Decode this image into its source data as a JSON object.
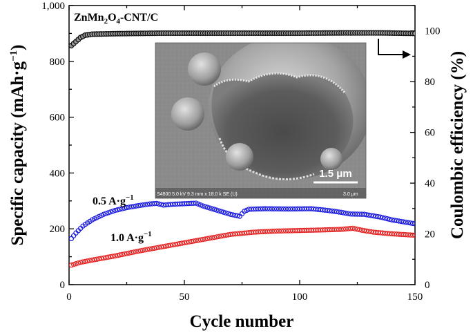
{
  "chart_data": {
    "type": "scatter",
    "title": "ZnMn2O4-CNT/C",
    "title_main": "ZnMn",
    "title_sub1": "2",
    "title_mid": "O",
    "title_sub2": "4",
    "title_end": "-CNT/C",
    "xlabel": "Cycle number",
    "ylabel_left": "Specific capacity (mAh·g",
    "ylabel_left_sup": "−1",
    "ylabel_left_end": ")",
    "ylabel_right": "Coulombic efficiency (%)",
    "xlim": [
      0,
      150
    ],
    "ylim_left": [
      0,
      1000
    ],
    "ylim_right": [
      0,
      110
    ],
    "x_ticks": [
      0,
      50,
      100,
      150
    ],
    "x_tick_labels": [
      "0",
      "50",
      "100",
      "150"
    ],
    "y_left_ticks": [
      0,
      200,
      400,
      600,
      800,
      1000
    ],
    "y_left_tick_labels": [
      "0",
      "200",
      "400",
      "600",
      "800",
      "1,000"
    ],
    "y_right_ticks": [
      0,
      20,
      40,
      60,
      80,
      100
    ],
    "y_right_tick_labels": [
      "0",
      "20",
      "40",
      "60",
      "80",
      "100"
    ],
    "series": [
      {
        "name": "0.5 A·g−1",
        "label_main": "0.5 A·g",
        "label_sup": "−1",
        "axis": "left",
        "color": "#1a1ae0",
        "keypoints": [
          [
            1,
            165
          ],
          [
            3,
            185
          ],
          [
            6,
            210
          ],
          [
            10,
            232
          ],
          [
            15,
            252
          ],
          [
            20,
            266
          ],
          [
            25,
            276
          ],
          [
            30,
            283
          ],
          [
            35,
            289
          ],
          [
            38,
            291
          ],
          [
            41,
            285
          ],
          [
            45,
            288
          ],
          [
            50,
            290
          ],
          [
            55,
            292
          ],
          [
            58,
            282
          ],
          [
            62,
            272
          ],
          [
            66,
            262
          ],
          [
            70,
            252
          ],
          [
            74,
            245
          ],
          [
            76,
            263
          ],
          [
            78,
            270
          ],
          [
            85,
            272
          ],
          [
            95,
            271
          ],
          [
            105,
            272
          ],
          [
            112,
            266
          ],
          [
            118,
            259
          ],
          [
            122,
            253
          ],
          [
            128,
            252
          ],
          [
            135,
            242
          ],
          [
            140,
            232
          ],
          [
            145,
            225
          ],
          [
            150,
            218
          ]
        ]
      },
      {
        "name": "1.0 A·g−1",
        "label_main": "1.0 A·g",
        "label_sup": "−1",
        "axis": "left",
        "color": "#e62020",
        "keypoints": [
          [
            1,
            70
          ],
          [
            5,
            80
          ],
          [
            10,
            88
          ],
          [
            20,
            103
          ],
          [
            30,
            120
          ],
          [
            40,
            135
          ],
          [
            50,
            150
          ],
          [
            60,
            165
          ],
          [
            70,
            180
          ],
          [
            80,
            188
          ],
          [
            90,
            192
          ],
          [
            100,
            194
          ],
          [
            110,
            196
          ],
          [
            118,
            198
          ],
          [
            123,
            202
          ],
          [
            127,
            195
          ],
          [
            132,
            188
          ],
          [
            140,
            182
          ],
          [
            150,
            177
          ]
        ]
      },
      {
        "name": "Coulombic efficiency",
        "axis": "right",
        "color": "#111111",
        "keypoints": [
          [
            1,
            94.2
          ],
          [
            3,
            95.8
          ],
          [
            5,
            97.4
          ],
          [
            7,
            98.3
          ],
          [
            10,
            98.7
          ],
          [
            20,
            98.9
          ],
          [
            40,
            99.1
          ],
          [
            60,
            99.1
          ],
          [
            80,
            99.1
          ],
          [
            100,
            99.1
          ],
          [
            120,
            99.2
          ],
          [
            135,
            99.2
          ],
          [
            150,
            99.0
          ]
        ]
      }
    ],
    "inset": {
      "scale_bar_label": "1.5 μm",
      "footer_left": "S4800 5.0 kV 9.3 mm x 18.0 k SE (U)",
      "footer_right": "3.0 μm"
    },
    "colors": {
      "blue_series": "#1a1ae0",
      "red_series": "#e62020",
      "ce_series": "#111111"
    }
  }
}
